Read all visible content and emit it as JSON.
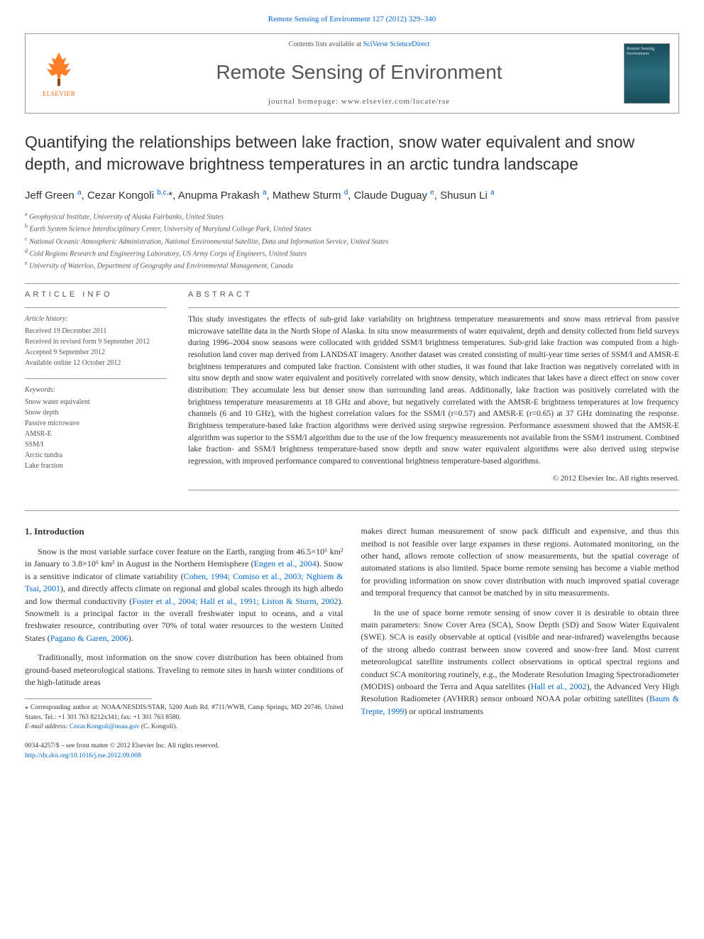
{
  "header": {
    "top_link": "Remote Sensing of Environment 127 (2012) 329–340",
    "contents_prefix": "Contents lists available at ",
    "contents_link": "SciVerse ScienceDirect",
    "journal_name": "Remote Sensing of Environment",
    "homepage_label": "journal homepage: www.elsevier.com/locate/rse",
    "publisher_name": "ELSEVIER",
    "cover_text": "Remote Sensing Environment"
  },
  "article": {
    "title": "Quantifying the relationships between lake fraction, snow water equivalent and snow depth, and microwave brightness temperatures in an arctic tundra landscape",
    "authors_html": "Jeff Green <sup>a</sup>, Cezar Kongoli <sup>b,c,</sup>*, Anupma Prakash <sup>a</sup>, Mathew Sturm <sup>d</sup>, Claude Duguay <sup>e</sup>, Shusun Li <sup>a</sup>",
    "affiliations": [
      {
        "sup": "a",
        "text": "Geophysical Institute, University of Alaska Fairbanks, United States"
      },
      {
        "sup": "b",
        "text": "Earth System Science Interdisciplinary Center, University of Maryland College Park, United States"
      },
      {
        "sup": "c",
        "text": "National Oceanic Atmospheric Administration, National Environmental Satellite, Data and Information Service, United States"
      },
      {
        "sup": "d",
        "text": "Cold Regions Research and Engineering Laboratory, US Army Corps of Engineers, United States"
      },
      {
        "sup": "e",
        "text": "University of Waterloo, Department of Geography and Environmental Management, Canada"
      }
    ]
  },
  "info": {
    "heading": "ARTICLE INFO",
    "history_label": "Article history:",
    "history": [
      "Received 19 December 2011",
      "Received in revised form 9 September 2012",
      "Accepted 9 September 2012",
      "Available online 12 October 2012"
    ],
    "keywords_label": "Keywords:",
    "keywords": [
      "Snow water equivalent",
      "Snow depth",
      "Passive microwave",
      "AMSR-E",
      "SSM/I",
      "Arctic tundra",
      "Lake fraction"
    ]
  },
  "abstract": {
    "heading": "ABSTRACT",
    "text": "This study investigates the effects of sub-grid lake variability on brightness temperature measurements and snow mass retrieval from passive microwave satellite data in the North Slope of Alaska. In situ snow measurements of water equivalent, depth and density collected from field surveys during 1996–2004 snow seasons were collocated with gridded SSM/I brightness temperatures. Sub-grid lake fraction was computed from a high-resolution land cover map derived from LANDSAT imagery. Another dataset was created consisting of multi-year time series of SSM/I and AMSR-E brightness temperatures and computed lake fraction. Consistent with other studies, it was found that lake fraction was negatively correlated with in situ snow depth and snow water equivalent and positively correlated with snow density, which indicates that lakes have a direct effect on snow cover distribution: They accumulate less but denser snow than surrounding land areas. Additionally, lake fraction was positively correlated with the brightness temperature measurements at 18 GHz and above, but negatively correlated with the AMSR-E brightness temperatures at low frequency channels (6 and 10 GHz), with the highest correlation values for the SSM/I (r=0.57) and AMSR-E (r=0.65) at 37 GHz dominating the response. Brightness temperature-based lake fraction algorithms were derived using stepwise regression. Performance assessment showed that the AMSR-E algorithm was superior to the SSM/I algorithm due to the use of the low frequency measurements not available from the SSM/I instrument. Combined lake fraction- and SSM/I brightness temperature-based snow depth and snow water equivalent algorithms were also derived using stepwise regression, with improved performance compared to conventional brightness temperature-based algorithms.",
    "copyright": "© 2012 Elsevier Inc. All rights reserved."
  },
  "introduction": {
    "heading": "1. Introduction",
    "para1_pre": "Snow is the most variable surface cover feature on the Earth, ranging from 46.5×10⁶ km² in January to 3.8×10⁶ km² in August in the Northern Hemisphere (",
    "cite1": "Engen et al., 2004",
    "para1_mid1": "). Snow is a sensitive indicator of climate variability (",
    "cite2": "Cohen, 1994; Comiso et al., 2003; Nghiem & Tsai, 2001",
    "para1_mid2": "), and directly affects climate on regional and global scales through its high albedo and low thermal conductivity (",
    "cite3": "Foster et al., 2004; Hall et al., 1991; Liston & Sturm, 2002",
    "para1_mid3": "). Snowmelt is a principal factor in the overall freshwater input to oceans, and a vital freshwater resource, contributing over 70% of total water resources to the western United States (",
    "cite4": "Pagano & Garen, 2006",
    "para1_end": ").",
    "para2": "Traditionally, most information on the snow cover distribution has been obtained from ground-based meteorological stations. Traveling to remote sites in harsh winter conditions of the high-latitude areas",
    "para3": "makes direct human measurement of snow pack difficult and expensive, and thus this method is not feasible over large expanses in these regions. Automated monitoring, on the other hand, allows remote collection of snow measurements, but the spatial coverage of automated stations is also limited. Space borne remote sensing has become a viable method for providing information on snow cover distribution with much improved spatial coverage and temporal frequency that cannot be matched by in situ measurements.",
    "para4_pre": "In the use of space borne remote sensing of snow cover it is desirable to obtain three main parameters: Snow Cover Area (SCA), Snow Depth (SD) and Snow Water Equivalent (SWE). SCA is easily observable at optical (visible and near-infrared) wavelengths because of the strong albedo contrast between snow covered and snow-free land. Most current meteorological satellite instruments collect observations in optical spectral regions and conduct SCA monitoring routinely, e.g., the Moderate Resolution Imaging Spectroradiometer (MODIS) onboard the Terra and Aqua satellites (",
    "cite5": "Hall et al., 2002",
    "para4_mid": "), the Advanced Very High Resolution Radiometer (AVHRR) sensor onboard NOAA polar orbiting satellites (",
    "cite6": "Baum & Trepte, 1999",
    "para4_end": ") or optical instruments"
  },
  "footnote": {
    "corr_label": "⁎ Corresponding author at: NOAA/NESDIS/STAR, 5200 Auth Rd. #711/WWB, Camp Springs, MD 20746, United States. Tel.: +1 301 763 8212x341; fax: +1 301 763 8580.",
    "email_label": "E-mail address: ",
    "email": "Cezar.Kongoli@noaa.gov",
    "email_suffix": " (C. Kongoli)."
  },
  "footer": {
    "issn_line": "0034-4257/$ – see front matter © 2012 Elsevier Inc. All rights reserved.",
    "doi": "http://dx.doi.org/10.1016/j.rse.2012.09.008"
  },
  "colors": {
    "link": "#0066cc",
    "text": "#333333",
    "muted": "#555555",
    "elsevier_orange": "#ff6600",
    "rule": "#999999"
  },
  "typography": {
    "title_fontsize": 23,
    "journal_name_fontsize": 28,
    "body_fontsize": 12,
    "abstract_fontsize": 11.5,
    "info_fontsize": 10
  }
}
